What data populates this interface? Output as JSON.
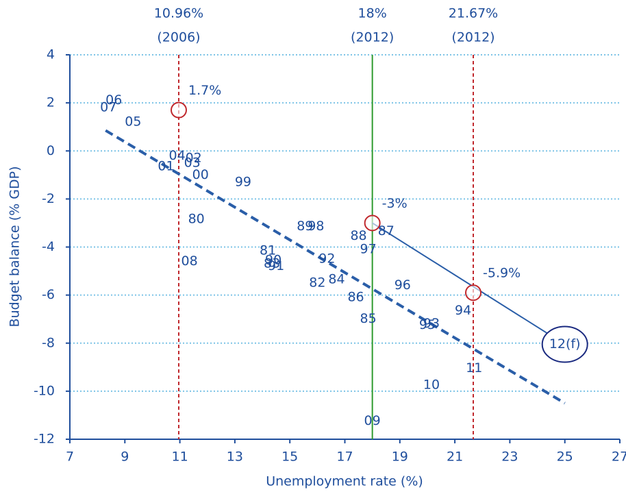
{
  "chart_data": {
    "type": "scatter",
    "x_label": "Unemployment rate (%)",
    "y_label": "Budget balance (% GDP)",
    "xlim": [
      7,
      27
    ],
    "ylim": [
      -12,
      4
    ],
    "xticks": [
      7,
      9,
      11,
      13,
      15,
      17,
      19,
      21,
      23,
      25,
      27
    ],
    "yticks": [
      -12,
      -10,
      -8,
      -6,
      -4,
      -2,
      0,
      2,
      4
    ],
    "grid": true,
    "color": "#2a5ea8",
    "point_labels": [
      "06",
      "07",
      "05",
      "04",
      "02",
      "03",
      "01",
      "00",
      "99",
      "80",
      "89",
      "98",
      "88",
      "87",
      "97",
      "81",
      "90",
      "83",
      "91",
      "08",
      "92",
      "82",
      "84",
      "96",
      "86",
      "94",
      "85",
      "95",
      "93",
      "11",
      "10",
      "09"
    ],
    "x": [
      8.6,
      8.4,
      9.3,
      10.9,
      11.5,
      11.45,
      10.5,
      11.75,
      13.3,
      11.6,
      15.55,
      15.95,
      17.5,
      18.5,
      17.85,
      14.2,
      14.4,
      14.35,
      14.5,
      11.35,
      16.35,
      16.0,
      16.7,
      19.1,
      17.4,
      21.3,
      17.85,
      20.0,
      20.15,
      21.7,
      20.15,
      18.0
    ],
    "y": [
      2.1,
      1.8,
      1.2,
      -0.2,
      -0.3,
      -0.5,
      -0.65,
      -1.0,
      -1.3,
      -2.85,
      -3.15,
      -3.15,
      -3.55,
      -3.35,
      -4.1,
      -4.15,
      -4.55,
      -4.7,
      -4.8,
      -4.6,
      -4.5,
      -5.5,
      -5.35,
      -5.6,
      -6.1,
      -6.65,
      -7.0,
      -7.25,
      -7.2,
      -9.05,
      -9.75,
      -11.25
    ],
    "forecast": {
      "label": "12(f)",
      "x": 25,
      "y": -8.05
    },
    "vlines": [
      {
        "x": 10.96,
        "color": "#c0282d",
        "dashed": true,
        "label": [
          "10.96%",
          "(2006)"
        ]
      },
      {
        "x": 18,
        "color": "#2e9a2e",
        "dashed": false,
        "label": [
          "18%",
          "(2012)"
        ]
      },
      {
        "x": 21.67,
        "color": "#c0282d",
        "dashed": true,
        "label": [
          "21.67%",
          "(2012)"
        ]
      }
    ],
    "highlights": [
      {
        "x": 10.96,
        "y": 1.7,
        "label": "1.7%"
      },
      {
        "x": 18,
        "y": -3,
        "label": "-3%"
      },
      {
        "x": 21.67,
        "y": -5.9,
        "label": "-5.9%"
      }
    ],
    "trend": {
      "x": [
        8.3,
        25
      ],
      "y": [
        0.85,
        -10.5
      ]
    },
    "projection": {
      "x": [
        18,
        25
      ],
      "y": [
        -3,
        -8.05
      ]
    }
  }
}
